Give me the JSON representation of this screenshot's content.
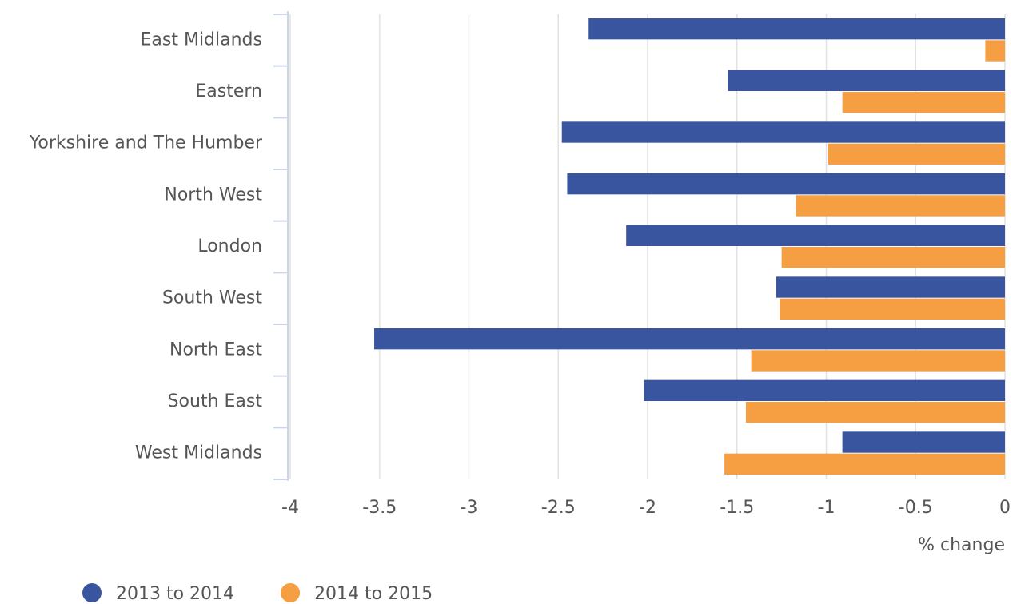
{
  "chart_data": {
    "type": "hbar",
    "categories": [
      "East Midlands",
      "Eastern",
      "Yorkshire and The Humber",
      "North West",
      "London",
      "South West",
      "North East",
      "South East",
      "West Midlands"
    ],
    "series": [
      {
        "name": "2013 to 2014",
        "color": "#3a559f",
        "values": [
          -2.33,
          -1.55,
          -2.48,
          -2.45,
          -2.12,
          -1.28,
          -3.53,
          -2.02,
          -0.91
        ]
      },
      {
        "name": "2014 to 2015",
        "color": "#f59e42",
        "values": [
          -0.11,
          -0.91,
          -0.99,
          -1.17,
          -1.25,
          -1.26,
          -1.42,
          -1.45,
          -1.57
        ]
      }
    ],
    "x_label": "% change",
    "xlim": [
      -4,
      0
    ],
    "xticks": [
      -4,
      -3.5,
      -3,
      -2.5,
      -2,
      -1.5,
      -1,
      -0.5,
      0
    ],
    "grid": true,
    "legend": "bottom-left"
  }
}
